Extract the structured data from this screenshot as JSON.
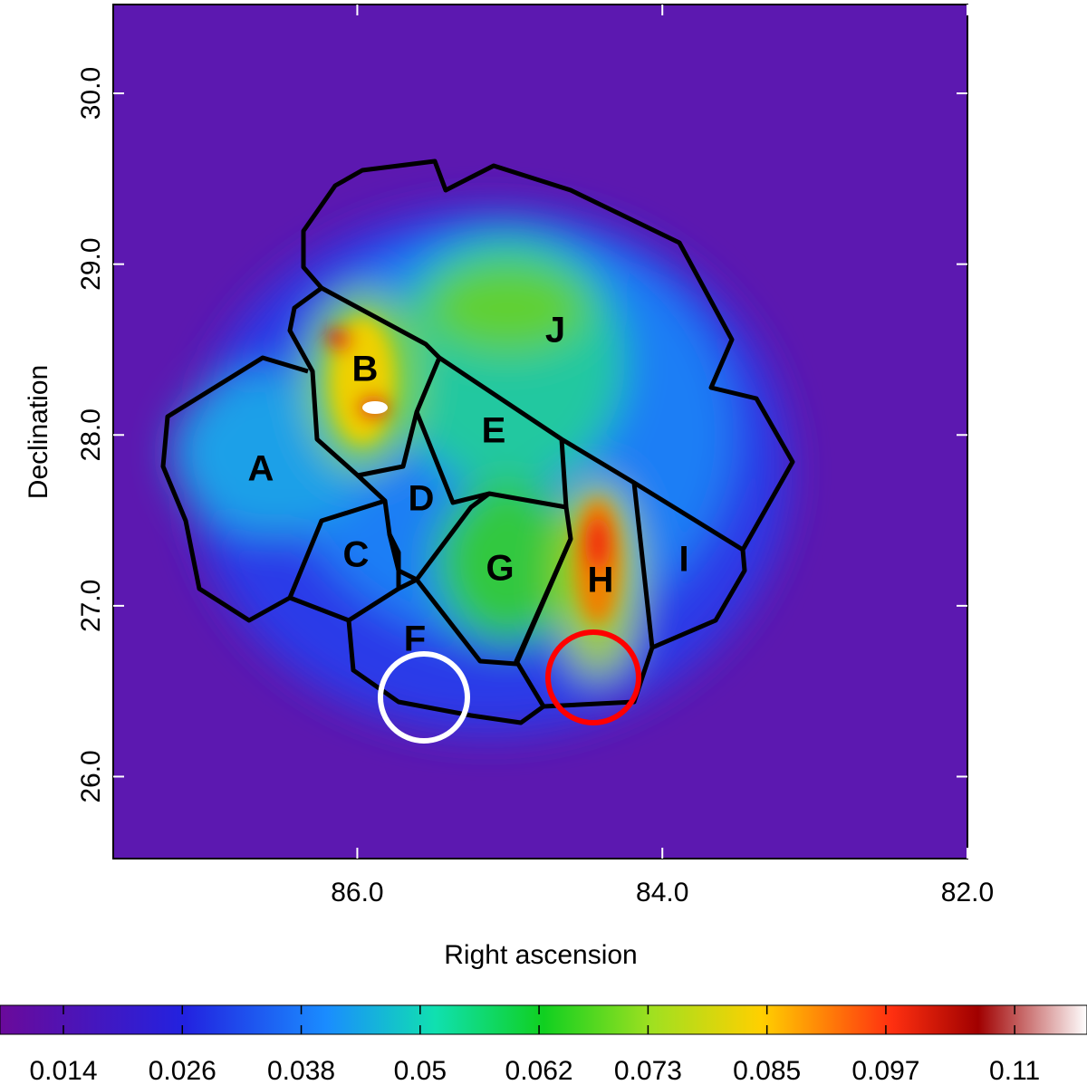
{
  "chart_data": {
    "type": "heatmap",
    "xlabel": "Right ascension",
    "ylabel": "Declination",
    "xlim": [
      87.6,
      82.0
    ],
    "xticks": [
      {
        "value": 86,
        "label": "86.0"
      },
      {
        "value": 84,
        "label": "84.0"
      },
      {
        "value": 82,
        "label": "82.0"
      }
    ],
    "ylim": [
      25.52,
      30.52
    ],
    "yticks": [
      {
        "value": 26,
        "label": "26.0"
      },
      {
        "value": 27,
        "label": "27.0"
      },
      {
        "value": 28,
        "label": "28.0"
      },
      {
        "value": 29,
        "label": "29.0"
      },
      {
        "value": 30,
        "label": "30.0"
      }
    ],
    "regions": [
      "A",
      "B",
      "C",
      "D",
      "E",
      "F",
      "G",
      "H",
      "I",
      "J"
    ],
    "colorbar": {
      "lim": [
        0.0076,
        0.1173
      ],
      "ticks": [
        0.014,
        0.026,
        0.038,
        0.05,
        0.062,
        0.073,
        0.085,
        0.097,
        0.11
      ]
    }
  }
}
